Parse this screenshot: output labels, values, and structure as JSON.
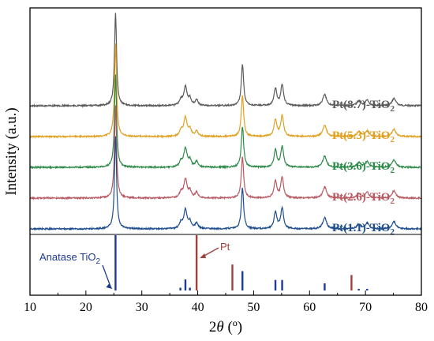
{
  "chart_data": {
    "type": "line",
    "xlabel": "2θ (º)",
    "ylabel": "Intensity (a.u.)",
    "xlim": [
      10,
      80
    ],
    "x_ticks": [
      10,
      20,
      30,
      40,
      50,
      60,
      70,
      80
    ],
    "grid": false,
    "series": [
      {
        "name": "Pt(8.7)-TiO2",
        "label_main": "Pt(8.7)-TiO",
        "label_sub": "2",
        "color": "#5a5a5a",
        "baseline": 1.0
      },
      {
        "name": "Pt(5.3)-TiO2",
        "label_main": "Pt(5.3)-TiO",
        "label_sub": "2",
        "color": "#e0a020",
        "baseline": 0.78
      },
      {
        "name": "Pt(3.6)-TiO2",
        "label_main": "Pt(3.6)-TiO",
        "label_sub": "2",
        "color": "#2e8a4a",
        "baseline": 0.56
      },
      {
        "name": "Pt(2.6)-TiO2",
        "label_main": "Pt(2.6)-TiO",
        "label_sub": "2",
        "color": "#b85a62",
        "baseline": 0.34
      },
      {
        "name": "Pt(1.1)-TiO2",
        "label_main": "Pt(1.1)-TiO",
        "label_sub": "2",
        "color": "#1f4e8c",
        "baseline": 0.12
      }
    ],
    "peaks": [
      {
        "x": 25.3,
        "height": 1.0,
        "width": 0.22
      },
      {
        "x": 37.0,
        "height": 0.06,
        "width": 0.3
      },
      {
        "x": 37.8,
        "height": 0.2,
        "width": 0.35
      },
      {
        "x": 38.6,
        "height": 0.07,
        "width": 0.3
      },
      {
        "x": 39.8,
        "height": 0.06,
        "width": 0.3
      },
      {
        "x": 48.0,
        "height": 0.44,
        "width": 0.25
      },
      {
        "x": 53.9,
        "height": 0.18,
        "width": 0.3
      },
      {
        "x": 55.1,
        "height": 0.22,
        "width": 0.3
      },
      {
        "x": 62.7,
        "height": 0.12,
        "width": 0.4
      },
      {
        "x": 68.8,
        "height": 0.05,
        "width": 0.4
      },
      {
        "x": 70.3,
        "height": 0.06,
        "width": 0.4
      },
      {
        "x": 75.1,
        "height": 0.08,
        "width": 0.4
      }
    ],
    "reference_anatase": {
      "label_main": "Anatase TiO",
      "label_sub": "2",
      "color": "#1f3a93",
      "lines": [
        {
          "x": 25.3,
          "intensity": 1.0
        },
        {
          "x": 36.9,
          "intensity": 0.05
        },
        {
          "x": 37.8,
          "intensity": 0.2
        },
        {
          "x": 38.6,
          "intensity": 0.05
        },
        {
          "x": 48.0,
          "intensity": 0.35
        },
        {
          "x": 53.9,
          "intensity": 0.19
        },
        {
          "x": 55.1,
          "intensity": 0.19
        },
        {
          "x": 62.7,
          "intensity": 0.13
        },
        {
          "x": 68.8,
          "intensity": 0.03
        },
        {
          "x": 70.3,
          "intensity": 0.03
        }
      ]
    },
    "reference_pt": {
      "label": "Pt",
      "color": "#a0413f",
      "lines": [
        {
          "x": 39.8,
          "intensity": 1.0
        },
        {
          "x": 46.2,
          "intensity": 0.47
        },
        {
          "x": 67.5,
          "intensity": 0.28
        }
      ]
    }
  }
}
